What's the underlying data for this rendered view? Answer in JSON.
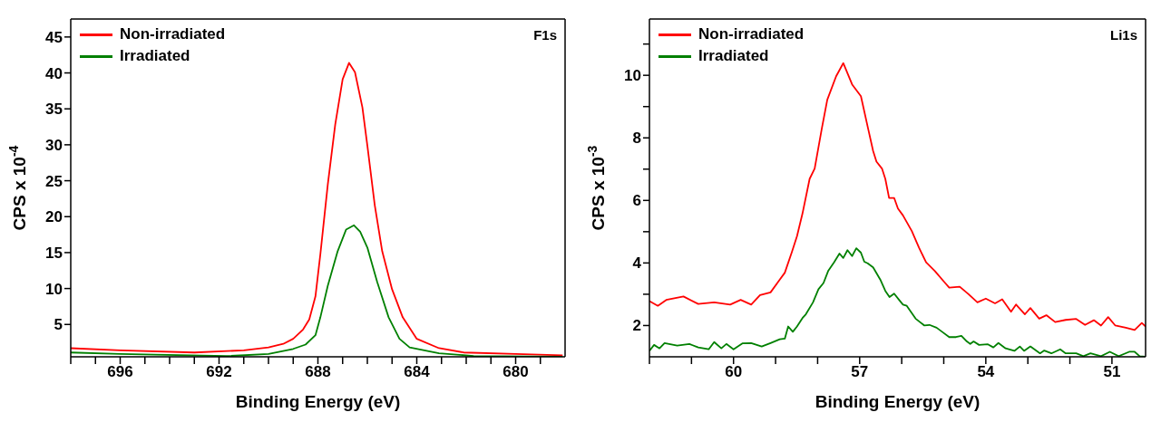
{
  "chart_data": [
    {
      "type": "line",
      "ylabel": "CPS x 10$^{-4}$",
      "xlabel": "Binding Energy (eV)",
      "annotations": [
        "F1s"
      ],
      "legend": "top left",
      "xlim": [
        698,
        678
      ],
      "ylim": [
        0.5,
        47.5
      ],
      "xticks": [
        {
          "value": 698,
          "label": null
        },
        {
          "value": 697,
          "label": null
        },
        696,
        {
          "value": 695,
          "label": null
        },
        {
          "value": 694,
          "label": null
        },
        {
          "value": 693,
          "label": null
        },
        692,
        {
          "value": 691,
          "label": null
        },
        {
          "value": 690,
          "label": null
        },
        {
          "value": 689,
          "label": null
        },
        688,
        {
          "value": 687,
          "label": null
        },
        {
          "value": 686,
          "label": null
        },
        {
          "value": 685,
          "label": null
        },
        684,
        {
          "value": 683,
          "label": null
        },
        {
          "value": 682,
          "label": null
        },
        {
          "value": 681,
          "label": null
        },
        680,
        {
          "value": 679,
          "label": null
        }
      ],
      "yticks": [
        5,
        10,
        15,
        20,
        25,
        30,
        35,
        40,
        45
      ],
      "series": [
        {
          "name": "Non-irradiated",
          "color": "#ff0000",
          "x": [
            698,
            696,
            693,
            691,
            690,
            689.4,
            689,
            688.6,
            688.35,
            688.1,
            687.9,
            687.6,
            687.3,
            687.0,
            686.74,
            686.5,
            686.2,
            686.0,
            685.7,
            685.4,
            685.0,
            684.57,
            684.0,
            683.1,
            682.1,
            680,
            678.1
          ],
          "values": [
            1.7,
            1.4,
            1.1,
            1.4,
            1.8,
            2.3,
            3.0,
            4.3,
            5.7,
            8.9,
            14.8,
            24.5,
            32.8,
            39.1,
            41.4,
            40.1,
            35.2,
            29.9,
            21.6,
            15.2,
            9.9,
            6.0,
            3.0,
            1.7,
            1.1,
            0.9,
            0.7
          ]
        },
        {
          "name": "Irradiated",
          "color": "#008000",
          "x": [
            698,
            696,
            691.7,
            690,
            689,
            688.5,
            688.1,
            687.9,
            687.6,
            687.2,
            686.86,
            686.54,
            686.29,
            686.0,
            685.6,
            685.14,
            684.7,
            684.29,
            683.1,
            681.7,
            678.1
          ],
          "values": [
            1.1,
            0.9,
            0.6,
            0.9,
            1.6,
            2.2,
            3.5,
            6.0,
            10.4,
            15.2,
            18.2,
            18.8,
            17.9,
            15.7,
            10.9,
            6.0,
            3.0,
            1.8,
            1.0,
            0.6,
            0.5
          ]
        }
      ]
    },
    {
      "type": "line",
      "ylabel": "CPS x 10$^{-3}$",
      "xlabel": "Binding Energy (eV)",
      "annotations": [
        "Li1s"
      ],
      "legend": "top left",
      "xlim": [
        62,
        50.2
      ],
      "ylim": [
        1,
        11.8
      ],
      "xticks": [
        {
          "value": 62,
          "label": null
        },
        {
          "value": 61,
          "label": null
        },
        60,
        {
          "value": 59,
          "label": null
        },
        {
          "value": 58,
          "label": null
        },
        57,
        {
          "value": 56,
          "label": null
        },
        {
          "value": 55,
          "label": null
        },
        54,
        {
          "value": 53,
          "label": null
        },
        {
          "value": 52,
          "label": null
        },
        51
      ],
      "yticks": [
        2,
        {
          "value": 3,
          "label": null
        },
        4,
        {
          "value": 5,
          "label": null
        },
        6,
        {
          "value": 7,
          "label": null
        },
        8,
        {
          "value": 9,
          "label": null
        },
        10,
        {
          "value": 11,
          "label": null
        }
      ],
      "series": [
        {
          "name": "Non-irradiated",
          "color": "#ff0000",
          "x": [
            62.0,
            61.8,
            61.6,
            61.19,
            60.84,
            60.46,
            60.08,
            59.83,
            59.58,
            59.37,
            59.12,
            58.9,
            58.78,
            58.61,
            58.49,
            58.36,
            58.19,
            58.07,
            57.9,
            57.77,
            57.56,
            57.39,
            57.18,
            56.97,
            56.8,
            56.68,
            56.6,
            56.47,
            56.39,
            56.3,
            56.18,
            56.09,
            55.97,
            55.76,
            55.59,
            55.42,
            55.21,
            55.0,
            54.87,
            54.62,
            54.41,
            54.2,
            54.0,
            53.78,
            53.61,
            53.4,
            53.28,
            53.07,
            52.94,
            52.73,
            52.56,
            52.35,
            52.1,
            51.85,
            51.64,
            51.43,
            51.26,
            51.09,
            50.92,
            50.67,
            50.46,
            50.29,
            50.2
          ],
          "values": [
            2.78,
            2.63,
            2.82,
            2.93,
            2.69,
            2.74,
            2.67,
            2.82,
            2.67,
            2.97,
            3.06,
            3.47,
            3.69,
            4.36,
            4.86,
            5.58,
            6.69,
            7.02,
            8.3,
            9.22,
            9.97,
            10.39,
            9.71,
            9.33,
            8.3,
            7.58,
            7.24,
            7.02,
            6.69,
            6.08,
            6.08,
            5.74,
            5.52,
            5.02,
            4.49,
            4.02,
            3.74,
            3.41,
            3.21,
            3.24,
            3.0,
            2.74,
            2.86,
            2.71,
            2.84,
            2.44,
            2.67,
            2.36,
            2.56,
            2.22,
            2.33,
            2.11,
            2.18,
            2.21,
            2.02,
            2.17,
            2.0,
            2.27,
            2.0,
            1.93,
            1.86,
            2.08,
            1.97
          ]
        },
        {
          "name": "Irradiated",
          "color": "#008000",
          "x": [
            62.0,
            61.89,
            61.76,
            61.64,
            61.34,
            61.05,
            60.84,
            60.59,
            60.46,
            60.29,
            60.17,
            60.0,
            59.79,
            59.58,
            59.33,
            59.12,
            58.9,
            58.78,
            58.7,
            58.59,
            58.49,
            58.36,
            58.28,
            58.11,
            57.98,
            57.86,
            57.75,
            57.61,
            57.48,
            57.39,
            57.29,
            57.18,
            57.08,
            56.97,
            56.89,
            56.81,
            56.68,
            56.51,
            56.39,
            56.29,
            56.18,
            56.05,
            55.97,
            55.88,
            55.67,
            55.46,
            55.34,
            55.17,
            55.04,
            54.87,
            54.71,
            54.58,
            54.45,
            54.37,
            54.29,
            54.16,
            53.95,
            53.82,
            53.7,
            53.53,
            53.32,
            53.19,
            53.09,
            52.94,
            52.71,
            52.61,
            52.44,
            52.23,
            52.1,
            51.85,
            51.68,
            51.51,
            51.26,
            51.05,
            50.84,
            50.59,
            50.46,
            50.34,
            50.2
          ],
          "values": [
            1.19,
            1.38,
            1.27,
            1.44,
            1.36,
            1.41,
            1.3,
            1.24,
            1.47,
            1.27,
            1.41,
            1.24,
            1.43,
            1.44,
            1.33,
            1.44,
            1.56,
            1.58,
            1.97,
            1.8,
            1.97,
            2.24,
            2.36,
            2.74,
            3.16,
            3.36,
            3.74,
            4.02,
            4.3,
            4.16,
            4.41,
            4.22,
            4.47,
            4.33,
            4.04,
            3.99,
            3.86,
            3.47,
            3.11,
            2.91,
            3.02,
            2.8,
            2.67,
            2.63,
            2.22,
            2.0,
            2.02,
            1.93,
            1.8,
            1.63,
            1.63,
            1.67,
            1.49,
            1.41,
            1.49,
            1.38,
            1.4,
            1.3,
            1.44,
            1.27,
            1.19,
            1.33,
            1.19,
            1.33,
            1.11,
            1.2,
            1.11,
            1.24,
            1.11,
            1.11,
            1.02,
            1.11,
            1.02,
            1.16,
            1.02,
            1.16,
            1.16,
            1.02,
            1.0
          ]
        }
      ]
    }
  ]
}
